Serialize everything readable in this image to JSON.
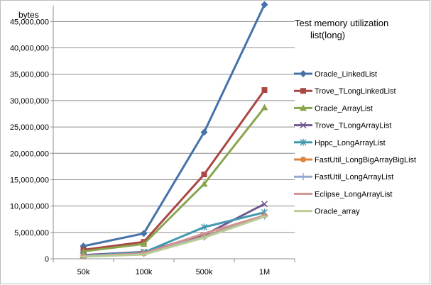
{
  "chart_data": {
    "type": "line",
    "title_lines": [
      "Test  memory utilization",
      "list(long)"
    ],
    "ylabel": "bytes",
    "xlabel": "",
    "categories": [
      "50k",
      "100k",
      "500k",
      "1M"
    ],
    "ylim": [
      0,
      48000000
    ],
    "yticks": [
      0,
      5000000,
      10000000,
      15000000,
      20000000,
      25000000,
      30000000,
      35000000,
      40000000,
      45000000
    ],
    "ytick_labels": [
      "0",
      "5,000,000",
      "10,000,000",
      "15,000,000",
      "20,000,000",
      "25,000,000",
      "30,000,000",
      "35,000,000",
      "40,000,000",
      "45,000,000"
    ],
    "grid": "horizontal",
    "legend_position": "right",
    "series": [
      {
        "name": "Oracle_LinkedList",
        "color": "#4572a7",
        "marker": "diamond",
        "values": [
          2400000,
          4800000,
          24000000,
          48200000
        ]
      },
      {
        "name": "Trove_TLongLinkedList",
        "color": "#aa4643",
        "marker": "square",
        "values": [
          1700000,
          3200000,
          16000000,
          32000000
        ]
      },
      {
        "name": "Oracle_ArrayList",
        "color": "#89a54e",
        "marker": "triangle",
        "values": [
          1400000,
          2800000,
          14200000,
          28700000
        ]
      },
      {
        "name": "Trove_TLongArrayList",
        "color": "#71588f",
        "marker": "x",
        "values": [
          700000,
          1300000,
          4500000,
          10400000
        ]
      },
      {
        "name": "Hppc_LongArrayList",
        "color": "#4198af",
        "marker": "star",
        "values": [
          600000,
          1200000,
          6000000,
          8800000
        ]
      },
      {
        "name": "FastUtil_LongBigArrayBigList",
        "color": "#db843d",
        "marker": "circle",
        "values": [
          500000,
          1000000,
          4200000,
          8200000
        ]
      },
      {
        "name": "FastUtil_LongArrayList",
        "color": "#93a9cf",
        "marker": "plus",
        "values": [
          500000,
          1000000,
          4100000,
          8100000
        ]
      },
      {
        "name": "Eclipse_LongArrayList",
        "color": "#d19392",
        "marker": "dash",
        "values": [
          500000,
          1000000,
          4800000,
          8200000
        ]
      },
      {
        "name": "Oracle_array",
        "color": "#b9cd96",
        "marker": "dash",
        "values": [
          400000,
          800000,
          4000000,
          8000000
        ]
      }
    ]
  }
}
